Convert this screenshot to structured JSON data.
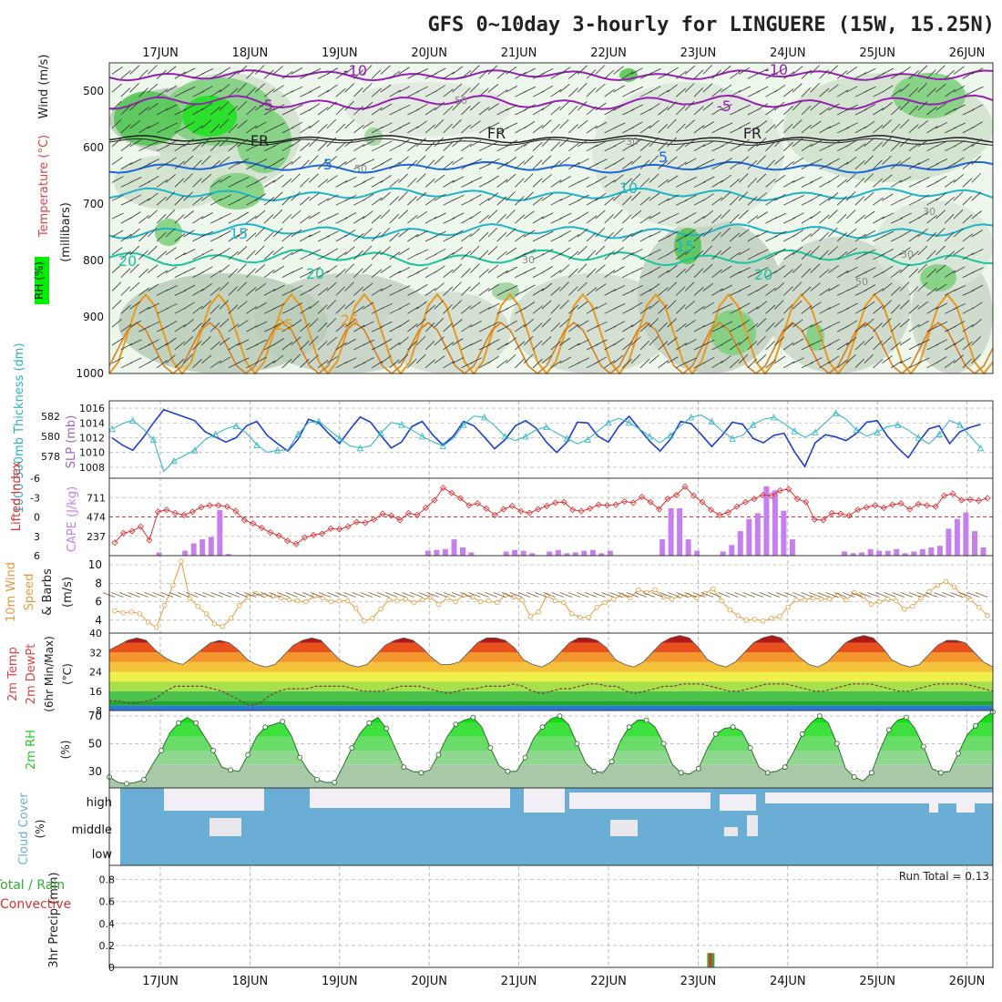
{
  "title": "GFS 0~10day 3-hourly for LINGUERE (15W, 15.25N)",
  "dates": [
    "17JUN",
    "18JUN",
    "19JUN",
    "20JUN",
    "21JUN",
    "22JUN",
    "23JUN",
    "24JUN",
    "25JUN",
    "26JUN"
  ],
  "colors": {
    "rh_green": "#66cc66",
    "rh_bright": "#00ee00",
    "temp_purple": "#9a1fb5",
    "temp_blue": "#1f66dd",
    "temp_cyan": "#1fb4c8",
    "temp_teal": "#19c59b",
    "temp_orange": "#e69a1f",
    "thickness": "#2ab4c0",
    "slp": "#1f3fcc",
    "lifted": "#dd3333",
    "cape": "#c77ff0",
    "wind": "#e69a3c",
    "rh2m": "#22cc22",
    "cloud": "#6aaed6",
    "rain": "#33aa33",
    "convective": "#dd3333"
  },
  "panels": {
    "upper": {
      "label_rh": "RH (%)",
      "label_temp": "Temperature (°C)",
      "label_wind": "Wind (m/s)",
      "ylabel": "(millibars)",
      "y_ticks": [
        "500",
        "600",
        "700",
        "800",
        "900",
        "1000"
      ],
      "contour_labels": {
        "m10": "-10",
        "m5": "-5",
        "fr": "FR",
        "p5": "5",
        "p10": "10",
        "p15": "15",
        "p20": "20",
        "p25": "25",
        "rh30": "30",
        "rh50": "50"
      }
    },
    "slp": {
      "label_thickness": "1000-500mb Thickness (dm)",
      "label_slp": "SLP (mb)",
      "left_ticks": [
        "582",
        "580",
        "578"
      ],
      "right_ticks": [
        "1016",
        "1014",
        "1012",
        "1010",
        "1008"
      ]
    },
    "cape": {
      "label_li": "Lifted Index",
      "label_cape": "CAPE (J/kg)",
      "li_ticks": [
        "-6",
        "-3",
        "0",
        "3",
        "6"
      ],
      "cape_ticks": [
        "711",
        "474",
        "237"
      ]
    },
    "wind": {
      "label": "10m Wind Speed & Barbs (m/s)",
      "label_a": "10m Wind",
      "label_b": "Speed",
      "label_c": "& Barbs",
      "label_d": "(m/s)",
      "ticks": [
        "10",
        "8",
        "6",
        "4"
      ]
    },
    "temp": {
      "label_a": "2m Temp",
      "label_b": "2m DewPt",
      "label_c": "(6hr Min/Max)",
      "label_d": "(°C)",
      "ticks": [
        "40",
        "32",
        "24",
        "16",
        "8"
      ]
    },
    "rh2m": {
      "label": "2m RH",
      "unit": "(%)",
      "ticks": [
        "70",
        "50",
        "30"
      ]
    },
    "cloud": {
      "label": "Cloud Cover",
      "unit": "(%)",
      "levels": [
        "high",
        "middle",
        "low"
      ]
    },
    "precip": {
      "label_a": "3hr Precip (mm)",
      "label_b": "Total / Rain",
      "label_c": "Convective",
      "run_total": "Run Total = 0.13",
      "ticks": [
        "0.8",
        "0.6",
        "0.4",
        "0.2",
        "0"
      ]
    }
  },
  "chart_data": [
    {
      "type": "line",
      "title": "1000-500mb Thickness (dm) / SLP (mb)",
      "x_unit": "3-hourly steps from 16JUN 12Z",
      "series": [
        {
          "name": "1000-500mb Thickness (dm)",
          "values": [
            581,
            581.5,
            581.8,
            581,
            580,
            577,
            578,
            578.5,
            579,
            580,
            580.5,
            581,
            581.3,
            580.6,
            579.5,
            578.8,
            579,
            579,
            580.5,
            581.6,
            581.7,
            580.9,
            580.1,
            579.4,
            579.2,
            579.4,
            580.6,
            581.6,
            581.4,
            580.9,
            580.3,
            579.8,
            579.4,
            580.1,
            581.4,
            582.2,
            582.1,
            581.3,
            580.3,
            579.9,
            580.3,
            580.9,
            581.2,
            580.6,
            580.1,
            579.6,
            580,
            580.8,
            581.6,
            582,
            581.6,
            581,
            580.3,
            579.7,
            580.4,
            581.3,
            582.1,
            582.3,
            581.7,
            580.8,
            580.1,
            580.4,
            581.4,
            581.9,
            582.1,
            581.5,
            580.8,
            580.2,
            580.7,
            581.6,
            582.5,
            581.9,
            580.9,
            580.3,
            580.7,
            581.2,
            581.4,
            580.9,
            580.2,
            579.6,
            580.5,
            581.8,
            581.4,
            580.3,
            579.2
          ]
        },
        {
          "name": "SLP (mb)",
          "values": [
            1012,
            1011,
            1010.3,
            1012,
            1014,
            1015.8,
            1015.3,
            1014.8,
            1014.3,
            1012.8,
            1012.1,
            1011.4,
            1012,
            1013.6,
            1014.2,
            1012.3,
            1011.2,
            1010.2,
            1011.8,
            1014.5,
            1014,
            1012.5,
            1011.2,
            1013.1,
            1014.8,
            1014.1,
            1012.3,
            1010.6,
            1011.4,
            1013.5,
            1014.2,
            1012.4,
            1011,
            1012.2,
            1014.2,
            1013.6,
            1012.1,
            1010.5,
            1011.7,
            1013.6,
            1014.3,
            1013.3,
            1011.4,
            1010,
            1011.4,
            1014.1,
            1014,
            1012.2,
            1011.4,
            1013.5,
            1014.9,
            1013.2,
            1011.5,
            1010.2,
            1011.8,
            1014.2,
            1013.9,
            1012.4,
            1010.8,
            1012.3,
            1014.1,
            1013.8,
            1011.9,
            1011.3,
            1012.3,
            1012.6,
            1010.1,
            1008.1,
            1011.3,
            1012.4,
            1012.1,
            1011.6,
            1012.6,
            1014.1,
            1014.3,
            1012.2,
            1010.6,
            1009.3,
            1011.4,
            1013.2,
            1013.6,
            1011.2,
            1012.8,
            1013.4,
            1013.8
          ]
        }
      ]
    },
    {
      "type": "bar",
      "title": "CAPE (J/kg) / Lifted Index",
      "series": [
        {
          "name": "CAPE (J/kg)",
          "values": [
            0,
            0,
            0,
            0,
            0,
            40,
            0,
            0,
            60,
            150,
            200,
            230,
            560,
            20,
            0,
            0,
            0,
            0,
            0,
            0,
            0,
            0,
            0,
            0,
            0,
            0,
            0,
            0,
            0,
            0,
            0,
            0,
            0,
            0,
            0,
            0,
            60,
            70,
            80,
            200,
            100,
            40,
            0,
            0,
            0,
            50,
            70,
            60,
            30,
            0,
            50,
            70,
            30,
            40,
            60,
            70,
            30,
            60,
            0,
            0,
            0,
            0,
            0,
            200,
            580,
            580,
            200,
            60,
            0,
            0,
            50,
            130,
            300,
            450,
            520,
            850,
            800,
            550,
            200,
            0,
            0,
            0,
            0,
            0,
            50,
            30,
            40,
            80,
            60,
            60,
            80,
            30,
            50,
            80,
            100,
            120,
            330,
            450,
            530,
            300,
            100
          ]
        },
        {
          "name": "Lifted Index",
          "values": [
            4,
            2.5,
            2.2,
            1.5,
            3.6,
            -0.8,
            -1.1,
            -0.6,
            -0.3,
            -0.8,
            -1.5,
            -1.8,
            -1.8,
            -1.6,
            -0.9,
            0.5,
            1,
            1.7,
            2.4,
            2.9,
            3.7,
            4.2,
            3.2,
            2.8,
            2.6,
            1.8,
            1.9,
            1.5,
            0.8,
            0.9,
            0.4,
            -0.5,
            -0.2,
            0.5,
            -0.6,
            -0.3,
            -1.4,
            -2.6,
            -4.5,
            -3.7,
            -2.9,
            -1.8,
            -2.1,
            -1.3,
            -0.3,
            -1.2,
            -1.7,
            -0.9,
            -0.6,
            -1.2,
            -1.7,
            -2.2,
            -2.3,
            -1.1,
            -0.9,
            -1.3,
            -1.9,
            -1.8,
            -1.9,
            -2.4,
            -2.2,
            -3.1,
            -2.3,
            -1.2,
            -2.8,
            -3.4,
            -4.7,
            -3.3,
            -2.3,
            -1.1,
            -0.3,
            -0.7,
            -1.6,
            -2.3,
            -2.8,
            -3.4,
            -3.3,
            -4.1,
            -4.3,
            -2.8,
            -2.3,
            0.4,
            0.5,
            -0.6,
            -0.5,
            -0.2,
            -1.1,
            -1.5,
            -1.8,
            -1.4,
            -1.9,
            -2.1,
            -1.2,
            -2,
            -1.8,
            -1.6,
            -3.3,
            -3.6,
            -2.6,
            -2.7,
            -2.5,
            -2.9
          ]
        }
      ]
    },
    {
      "type": "line",
      "title": "10m Wind Speed (m/s)",
      "series": [
        {
          "name": "10m Wind Speed",
          "values": [
            5,
            4.8,
            4.9,
            4.7,
            3.8,
            3.2,
            5.6,
            7.8,
            10.4,
            6.4,
            5.5,
            4.7,
            3.6,
            3.3,
            4.2,
            5.6,
            6.5,
            6.9,
            6.7,
            6.6,
            6.4,
            6.2,
            6.1,
            6,
            6.6,
            6.4,
            6,
            6.1,
            6.1,
            5.3,
            3.9,
            4.2,
            5.2,
            6.2,
            6.1,
            6.3,
            5.9,
            6.2,
            6.5,
            5.7,
            6.4,
            6,
            6.7,
            6.5,
            6,
            6.1,
            5.9,
            6.7,
            6.5,
            6.2,
            4.4,
            4.9,
            6.7,
            6.1,
            5.9,
            4.7,
            4.3,
            4.3,
            5.4,
            5.9,
            6.3,
            6.7,
            6.4,
            7.3,
            7,
            7.3,
            6.5,
            6.3,
            6.6,
            6.7,
            6.4,
            6.9,
            7.4,
            6.1,
            5.1,
            4.5,
            4,
            4.1,
            3.9,
            4.2,
            4.4,
            5.4,
            6.2,
            6.2,
            6.4,
            6.3,
            6.3,
            6.7,
            6.2,
            7,
            6.6,
            5.7,
            6,
            6.3,
            6.1,
            5.2,
            5.5,
            6.4,
            7.1,
            7.8,
            8.2,
            7.6,
            6.7,
            6.2,
            5.4,
            4.5
          ]
        }
      ]
    },
    {
      "type": "area",
      "title": "2m Temp / 2m DewPt (°C)",
      "series": [
        {
          "name": "2m Temp",
          "values": [
            33,
            35,
            37,
            38,
            37,
            33,
            30,
            28,
            27,
            30,
            33,
            36,
            37,
            36,
            33,
            29,
            27,
            26,
            27,
            31,
            35,
            37,
            38,
            37,
            33,
            29,
            27,
            26,
            27,
            31,
            35,
            37,
            38,
            37,
            34,
            30,
            27,
            27,
            28,
            32,
            36,
            38,
            38,
            37,
            34,
            29,
            27,
            26,
            28,
            32,
            36,
            38,
            38,
            37,
            34,
            29,
            27,
            26,
            28,
            32,
            36,
            38,
            39,
            38,
            34,
            29,
            27,
            26,
            28,
            32,
            36,
            38,
            39,
            38,
            34,
            30,
            27,
            26,
            28,
            32,
            36,
            38,
            39,
            38,
            34,
            29,
            27,
            26,
            27,
            31,
            35,
            37,
            37,
            36,
            32,
            28,
            26
          ]
        },
        {
          "name": "2m DewPt",
          "values": [
            12,
            12,
            11,
            11,
            12,
            13,
            16,
            18,
            18,
            18,
            18,
            17,
            16,
            14,
            12,
            10,
            11,
            14,
            16,
            17,
            17,
            17,
            18,
            18,
            18,
            18,
            17,
            16,
            16,
            16,
            17,
            18,
            18,
            18,
            17,
            16,
            15,
            16,
            17,
            17,
            18,
            18,
            18,
            19,
            18,
            16,
            15,
            16,
            17,
            17,
            18,
            19,
            19,
            18,
            18,
            16,
            15,
            16,
            17,
            18,
            18,
            19,
            19,
            19,
            18,
            17,
            16,
            16,
            17,
            18,
            19,
            19,
            19,
            18,
            17,
            16,
            16,
            17,
            18,
            19,
            19,
            19,
            18,
            17,
            16,
            16,
            17,
            18,
            19,
            19,
            19,
            19,
            18,
            17,
            16
          ]
        }
      ]
    },
    {
      "type": "area",
      "title": "2m RH (%)",
      "series": [
        {
          "name": "2m RH",
          "values": [
            26,
            22,
            21,
            22,
            24,
            35,
            45,
            58,
            65,
            69,
            65,
            55,
            45,
            33,
            31,
            30,
            42,
            55,
            62,
            64,
            66,
            56,
            40,
            30,
            24,
            22,
            22,
            34,
            47,
            58,
            65,
            69,
            61,
            47,
            33,
            30,
            29,
            31,
            42,
            55,
            64,
            67,
            69,
            62,
            47,
            34,
            30,
            30,
            40,
            54,
            62,
            68,
            70,
            64,
            50,
            36,
            30,
            29,
            37,
            52,
            62,
            67,
            67,
            62,
            50,
            35,
            29,
            28,
            32,
            46,
            57,
            61,
            62,
            59,
            47,
            33,
            29,
            30,
            33,
            44,
            57,
            65,
            70,
            65,
            50,
            32,
            26,
            23,
            29,
            46,
            60,
            67,
            69,
            61,
            48,
            32,
            29,
            30,
            43,
            56,
            63,
            69,
            73
          ]
        }
      ]
    },
    {
      "type": "bar",
      "title": "3hr Precip (mm)",
      "ylim": [
        0,
        0.9
      ],
      "series": [
        {
          "name": "Total / Rain",
          "values_at": {
            "23JUN 06Z": 0.13
          }
        },
        {
          "name": "Convective",
          "values_at": {
            "23JUN 06Z": 0.13
          }
        }
      ]
    }
  ]
}
